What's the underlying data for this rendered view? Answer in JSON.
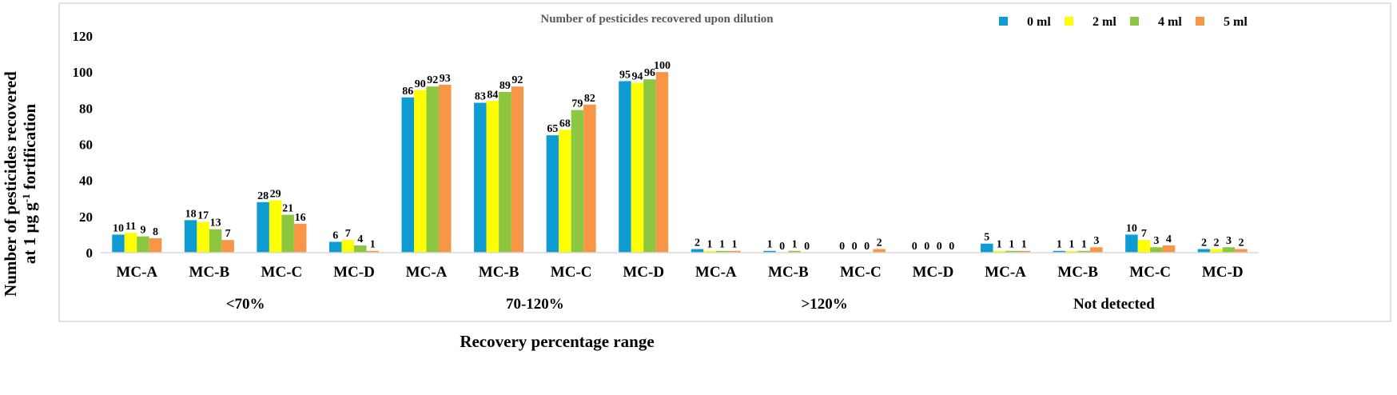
{
  "chart_data": {
    "type": "bar",
    "title": "Number of pesticides recovered upon dilution",
    "ylabel_line1": "Number of pesticides recovered",
    "ylabel_line2_prefix": "at 1 µg g",
    "ylabel_line2_sup": "-1",
    "ylabel_line2_suffix": " fortification",
    "xlabel": "Recovery percentage range",
    "ylim": [
      0,
      120
    ],
    "yticks": [
      "0",
      "20",
      "40",
      "60",
      "80",
      "100",
      "120"
    ],
    "legend_position": "top-right",
    "groups": [
      "<70%",
      "70-120%",
      ">120%",
      "Not detected"
    ],
    "categories": [
      "MC-A",
      "MC-B",
      "MC-C",
      "MC-D",
      "MC-A",
      "MC-B",
      "MC-C",
      "MC-D",
      "MC-A",
      "MC-B",
      "MC-C",
      "MC-D",
      "MC-A",
      "MC-B",
      "MC-C",
      "MC-D"
    ],
    "series": [
      {
        "name": "0 ml",
        "color": "#0E9CD3",
        "values": [
          10,
          18,
          28,
          6,
          86,
          83,
          65,
          95,
          2,
          1,
          0,
          0,
          5,
          1,
          10,
          2
        ]
      },
      {
        "name": "2 ml",
        "color": "#FFFF00",
        "values": [
          11,
          17,
          29,
          7,
          90,
          84,
          68,
          94,
          1,
          0,
          0,
          0,
          1,
          1,
          7,
          2
        ]
      },
      {
        "name": "4 ml",
        "color": "#8DC63F",
        "values": [
          9,
          13,
          21,
          4,
          92,
          89,
          79,
          96,
          1,
          1,
          0,
          0,
          1,
          1,
          3,
          3
        ]
      },
      {
        "name": "5 ml",
        "color": "#F79646",
        "values": [
          8,
          7,
          16,
          1,
          93,
          92,
          82,
          100,
          1,
          0,
          2,
          0,
          1,
          3,
          4,
          2
        ]
      }
    ],
    "colors": {
      "axis": "#d9d9d9",
      "text": "#000000",
      "title": "#595959",
      "frame": "#d9d9d9"
    }
  }
}
